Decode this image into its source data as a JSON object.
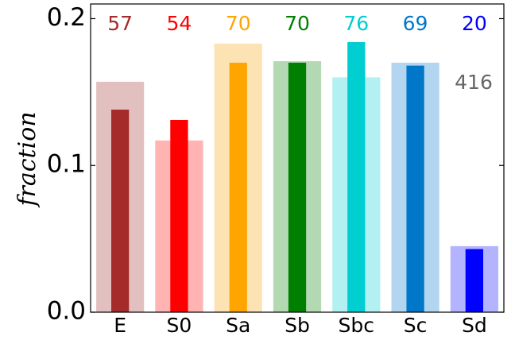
{
  "chart_data": {
    "type": "bar",
    "ylabel": "fraction",
    "categories": [
      "E",
      "S0",
      "Sa",
      "Sb",
      "Sbc",
      "Sc",
      "Sd"
    ],
    "series": [
      {
        "colors": [
          "#e3c0c0",
          "#ffb3b3",
          "#fde3b3",
          "#b3d9b3",
          "#b3f0f1",
          "#b3d6f0",
          "#b3b3ff"
        ],
        "values": [
          0.157,
          0.117,
          0.183,
          0.171,
          0.16,
          0.17,
          0.045
        ]
      },
      {
        "colors": [
          "#a52a2a",
          "#ff0000",
          "#ffa500",
          "#008000",
          "#00ced1",
          "#0077c8",
          "#0000ff"
        ],
        "values": [
          0.138,
          0.131,
          0.17,
          0.17,
          0.184,
          0.168,
          0.043
        ]
      }
    ],
    "counts": [
      57,
      54,
      70,
      70,
      76,
      69,
      20
    ],
    "total_count": 416,
    "total_color": "#666666",
    "ylim": [
      0,
      0.21
    ],
    "yticks": [
      {
        "value": 0,
        "label": "0.0"
      },
      0.1,
      0.2
    ]
  }
}
